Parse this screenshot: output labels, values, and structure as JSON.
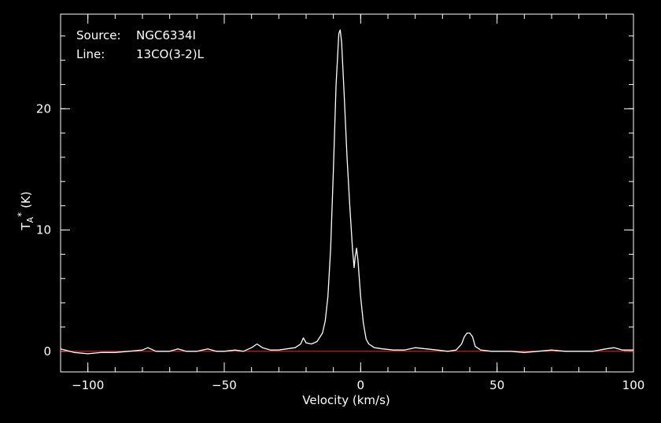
{
  "chart_data": {
    "type": "line",
    "annotations": {
      "source_label": "Source:",
      "source_value": "NGC6334I",
      "line_label": "Line:",
      "line_value": "13CO(3-2)L"
    },
    "xlabel": "Velocity (km/s)",
    "ylabel_main": "T",
    "ylabel_sub": "A",
    "ylabel_sup": "*",
    "ylabel_unit": "(K)",
    "xlim": [
      -110,
      100
    ],
    "ylim": [
      -1.7,
      27.8
    ],
    "x_ticks": [
      {
        "value": -100,
        "label": "−100"
      },
      {
        "value": -50,
        "label": "−50"
      },
      {
        "value": 0,
        "label": "0"
      },
      {
        "value": 50,
        "label": "50"
      },
      {
        "value": 100,
        "label": "100"
      }
    ],
    "y_ticks": [
      {
        "value": 0,
        "label": "0"
      },
      {
        "value": 10,
        "label": "10"
      },
      {
        "value": 20,
        "label": "20"
      }
    ],
    "x_minor_step": 10,
    "y_minor_step": 2,
    "baseline": 0,
    "colors": {
      "background": "#000000",
      "axes": "#ffffff",
      "spectrum": "#ffffff",
      "baseline": "#ff2020"
    },
    "series": [
      {
        "points": [
          [
            -110,
            0.2
          ],
          [
            -105,
            -0.1
          ],
          [
            -100,
            -0.2
          ],
          [
            -95,
            -0.1
          ],
          [
            -90,
            -0.1
          ],
          [
            -85,
            0.0
          ],
          [
            -80,
            0.1
          ],
          [
            -78,
            0.3
          ],
          [
            -75,
            0.0
          ],
          [
            -70,
            0.0
          ],
          [
            -67,
            0.2
          ],
          [
            -64,
            0.0
          ],
          [
            -60,
            0.0
          ],
          [
            -56,
            0.2
          ],
          [
            -53,
            0.0
          ],
          [
            -50,
            0.0
          ],
          [
            -46,
            0.1
          ],
          [
            -43,
            0.0
          ],
          [
            -40,
            0.3
          ],
          [
            -38,
            0.6
          ],
          [
            -36,
            0.3
          ],
          [
            -33,
            0.1
          ],
          [
            -30,
            0.1
          ],
          [
            -27,
            0.2
          ],
          [
            -24,
            0.3
          ],
          [
            -22,
            0.6
          ],
          [
            -21,
            1.1
          ],
          [
            -20,
            0.7
          ],
          [
            -18,
            0.6
          ],
          [
            -16,
            0.8
          ],
          [
            -14,
            1.5
          ],
          [
            -13,
            2.5
          ],
          [
            -12,
            4.5
          ],
          [
            -11,
            8.5
          ],
          [
            -10,
            15.0
          ],
          [
            -9,
            22.0
          ],
          [
            -8,
            26.2
          ],
          [
            -7.5,
            26.5
          ],
          [
            -7,
            25.5
          ],
          [
            -6,
            21.0
          ],
          [
            -5,
            16.0
          ],
          [
            -4,
            12.0
          ],
          [
            -3,
            8.5
          ],
          [
            -2.4,
            6.9
          ],
          [
            -2,
            7.8
          ],
          [
            -1.5,
            8.5
          ],
          [
            -1,
            7.5
          ],
          [
            0,
            4.5
          ],
          [
            1,
            2.3
          ],
          [
            2,
            1.0
          ],
          [
            3,
            0.6
          ],
          [
            5,
            0.3
          ],
          [
            8,
            0.2
          ],
          [
            12,
            0.1
          ],
          [
            16,
            0.1
          ],
          [
            20,
            0.3
          ],
          [
            24,
            0.2
          ],
          [
            28,
            0.1
          ],
          [
            32,
            0.0
          ],
          [
            35,
            0.1
          ],
          [
            37,
            0.6
          ],
          [
            38,
            1.2
          ],
          [
            39,
            1.5
          ],
          [
            40,
            1.5
          ],
          [
            41,
            1.2
          ],
          [
            42,
            0.4
          ],
          [
            44,
            0.1
          ],
          [
            48,
            0.0
          ],
          [
            55,
            0.0
          ],
          [
            60,
            -0.1
          ],
          [
            65,
            0.0
          ],
          [
            70,
            0.1
          ],
          [
            75,
            0.0
          ],
          [
            80,
            0.0
          ],
          [
            85,
            0.0
          ],
          [
            90,
            0.2
          ],
          [
            93,
            0.3
          ],
          [
            96,
            0.1
          ],
          [
            100,
            0.1
          ]
        ]
      }
    ]
  }
}
